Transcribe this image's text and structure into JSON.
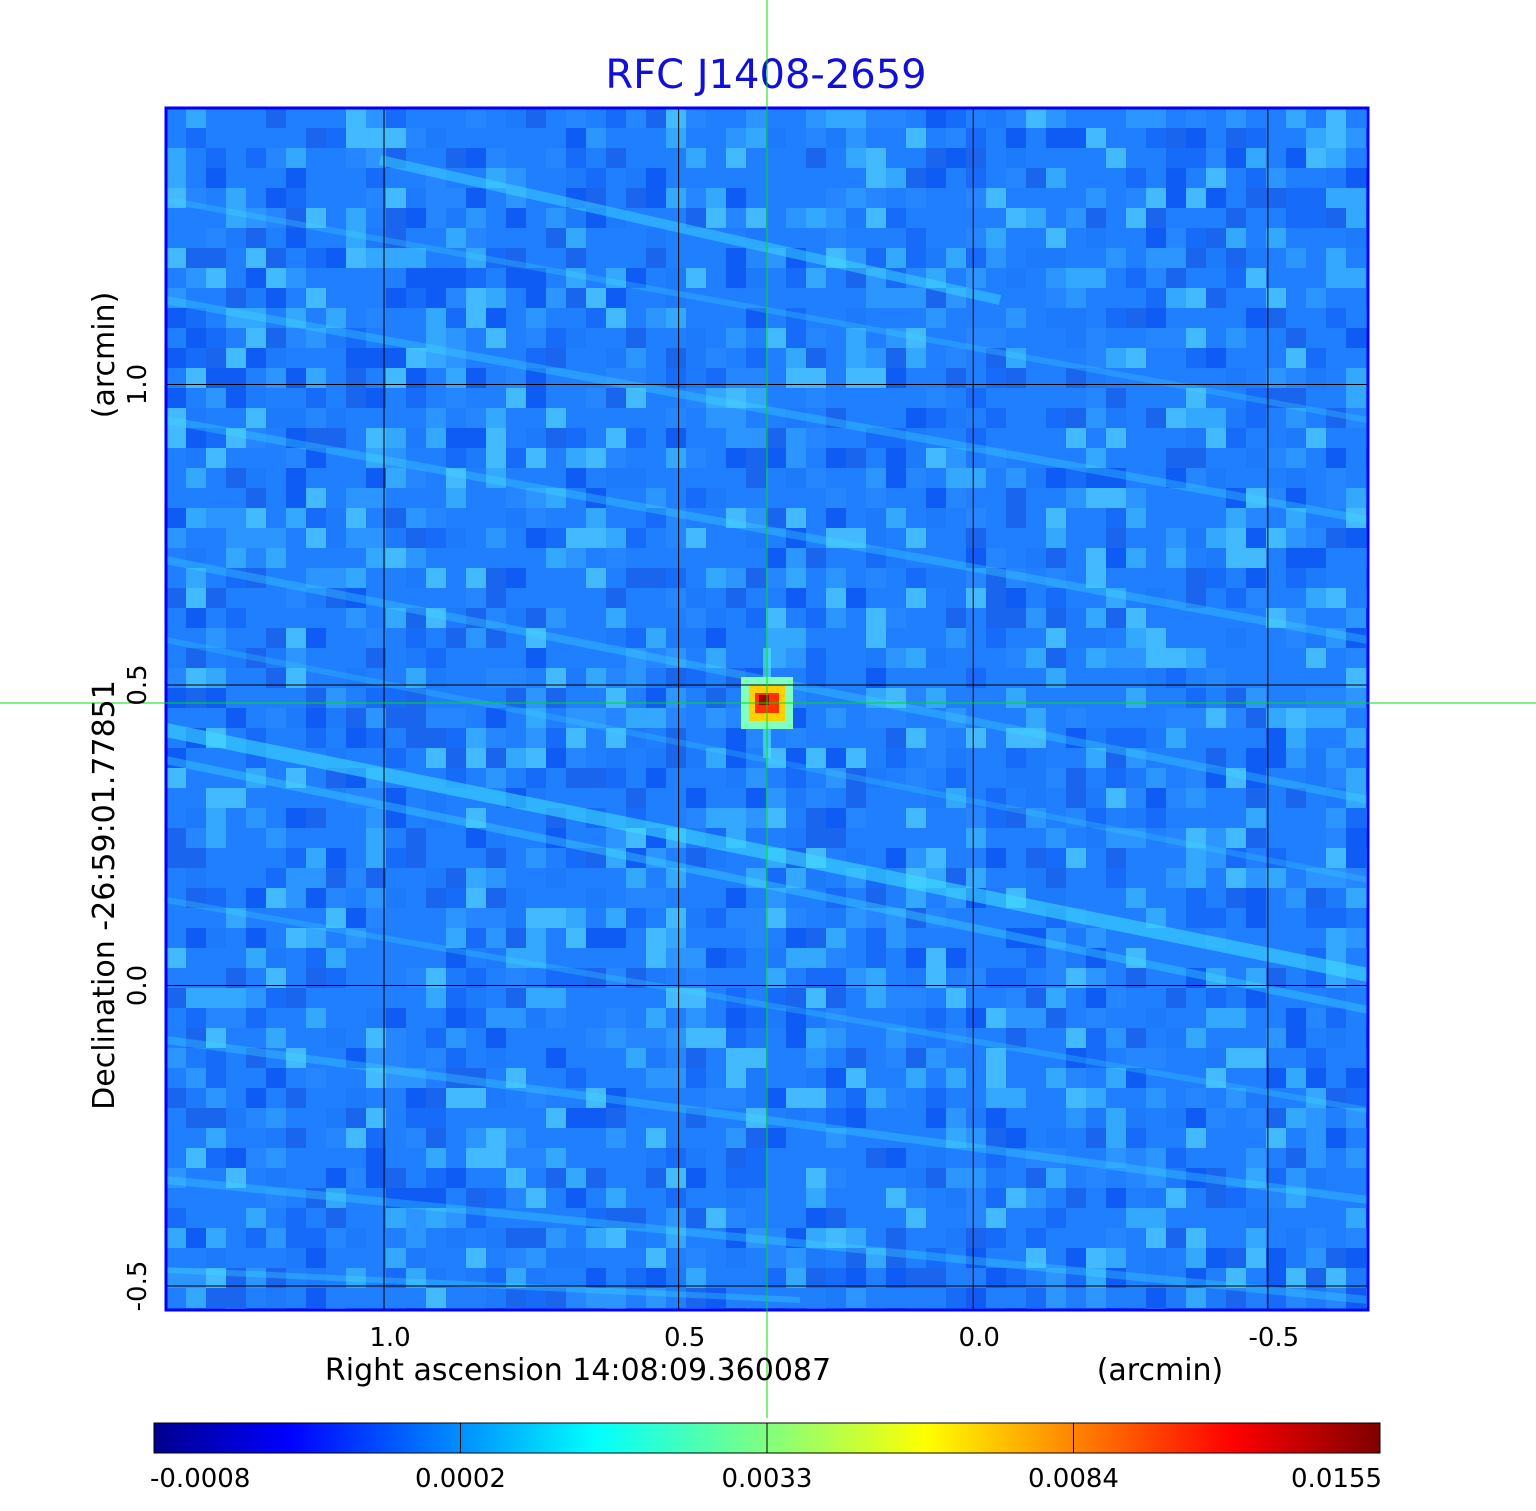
{
  "chart_data": {
    "type": "heatmap",
    "title": "RFC J1408-2659",
    "xlabel": "Right ascension  14:08:09.360087",
    "xunit": "(arcmin)",
    "ylabel": "Declination  -26:59:01.77851",
    "yunit": "(arcmin)",
    "xlim": [
      1.37,
      -0.67
    ],
    "ylim": [
      -0.54,
      1.46
    ],
    "x_ticks": [
      {
        "value": 1.0,
        "label": "1.0"
      },
      {
        "value": 0.5,
        "label": "0.5"
      },
      {
        "value": 0.0,
        "label": "0.0"
      },
      {
        "value": -0.5,
        "label": "-0.5"
      }
    ],
    "y_ticks": [
      {
        "value": 1.0,
        "label": "1.0"
      },
      {
        "value": 0.5,
        "label": "0.5"
      },
      {
        "value": 0.0,
        "label": "0.0"
      },
      {
        "value": -0.5,
        "label": "-0.5"
      }
    ],
    "grid": true,
    "crosshair": {
      "x": 0.35,
      "y": 0.47,
      "color": "#00e000"
    },
    "source_peak": {
      "x": 0.35,
      "y": 0.47,
      "value": 0.0155
    },
    "colormap": "jet",
    "colorbar": {
      "orientation": "horizontal",
      "ticks": [
        "-0.0008",
        "0.0002",
        "0.0033",
        "0.0084",
        "0.0155"
      ],
      "min": -0.0008,
      "max": 0.0155
    }
  }
}
